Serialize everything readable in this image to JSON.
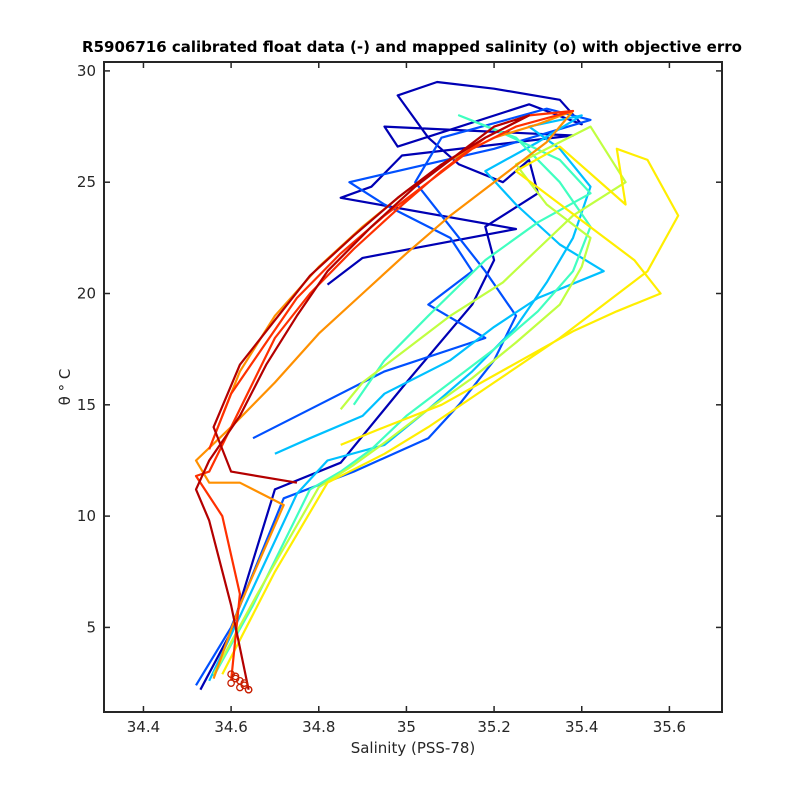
{
  "chart_data": {
    "type": "line",
    "title": "R5906716 calibrated float data (-) and mapped salinity (o) with objective erro",
    "xlabel": "Salinity (PSS-78)",
    "ylabel": "θ ° C",
    "xlim": [
      34.31,
      35.72
    ],
    "ylim": [
      1.2,
      30.4
    ],
    "x_ticks": [
      "34.4",
      "34.6",
      "34.8",
      "35",
      "35.2",
      "35.4",
      "35.6"
    ],
    "y_ticks": [
      "5",
      "10",
      "15",
      "20",
      "25",
      "30"
    ],
    "grid": false,
    "legend": "none",
    "colormap": "jet",
    "series": [
      {
        "color": "#0000b4",
        "x": [
          34.53,
          34.6,
          34.7,
          34.85,
          35.0,
          35.15,
          35.2,
          35.18,
          35.3,
          35.28,
          35.22,
          35.12,
          35.05,
          34.98,
          35.07,
          35.2,
          35.35,
          35.4,
          35.28,
          34.98,
          34.95,
          35.38,
          34.99,
          34.92,
          34.85,
          35.25,
          34.9,
          34.82
        ],
        "y": [
          2.2,
          4.8,
          11.2,
          12.4,
          16.0,
          19.5,
          21.5,
          23.0,
          24.5,
          26.0,
          25.0,
          25.8,
          27.0,
          28.9,
          29.5,
          29.2,
          28.7,
          27.6,
          28.5,
          26.6,
          27.5,
          27.1,
          26.2,
          24.8,
          24.3,
          22.9,
          21.6,
          20.4
        ]
      },
      {
        "color": "#0050ff",
        "x": [
          34.52,
          34.6,
          34.72,
          34.88,
          35.05,
          35.12,
          35.2,
          35.25,
          35.18,
          35.1,
          35.02,
          35.08,
          35.32,
          35.42,
          35.2,
          34.87,
          34.95,
          35.1,
          35.15,
          35.05,
          35.18,
          34.95,
          34.8,
          34.65
        ],
        "y": [
          2.4,
          5.0,
          10.8,
          12.0,
          13.5,
          15.0,
          17.0,
          19.0,
          21.0,
          23.0,
          25.0,
          27.0,
          28.3,
          27.8,
          26.5,
          25.0,
          24.0,
          22.5,
          21.0,
          19.5,
          18.0,
          16.5,
          15.0,
          13.5
        ]
      },
      {
        "color": "#00c0ff",
        "x": [
          34.55,
          34.62,
          34.75,
          34.82,
          34.95,
          35.05,
          35.15,
          35.25,
          35.32,
          35.38,
          35.42,
          35.35,
          35.28,
          35.4,
          35.3,
          35.18,
          35.25,
          35.35,
          35.45,
          35.3,
          35.2,
          35.1,
          34.95,
          34.9,
          34.78,
          34.7
        ],
        "y": [
          2.6,
          5.5,
          11.0,
          12.5,
          13.2,
          14.8,
          16.5,
          18.5,
          20.5,
          22.5,
          24.8,
          26.5,
          27.5,
          28.0,
          26.8,
          25.5,
          24.0,
          22.2,
          21.0,
          19.8,
          18.5,
          17.0,
          15.5,
          14.5,
          13.5,
          12.8
        ]
      },
      {
        "color": "#40ffc0",
        "x": [
          34.56,
          34.65,
          34.78,
          34.85,
          34.92,
          35.0,
          35.1,
          35.2,
          35.3,
          35.38,
          35.42,
          35.35,
          35.25,
          35.12,
          35.22,
          35.35,
          35.42,
          35.3,
          35.18,
          35.05,
          34.95,
          34.88
        ],
        "y": [
          2.8,
          6.0,
          11.2,
          12.0,
          13.0,
          14.5,
          16.0,
          17.5,
          19.2,
          21.0,
          23.0,
          25.0,
          27.0,
          28.0,
          27.2,
          26.0,
          24.5,
          23.2,
          21.5,
          19.0,
          17.0,
          15.0
        ]
      },
      {
        "color": "#c0ff40",
        "x": [
          34.56,
          34.66,
          34.8,
          34.88,
          34.95,
          35.05,
          35.15,
          35.25,
          35.35,
          35.4,
          35.42,
          35.32,
          35.25,
          35.42,
          35.5,
          35.38,
          35.3,
          35.22,
          35.1,
          35.0,
          34.9,
          34.85
        ],
        "y": [
          2.9,
          6.5,
          11.3,
          12.3,
          13.3,
          14.8,
          16.2,
          17.8,
          19.5,
          21.2,
          22.5,
          24.0,
          25.8,
          27.5,
          25.0,
          23.5,
          22.0,
          20.5,
          19.0,
          17.5,
          16.0,
          14.8
        ]
      },
      {
        "color": "#ffee00",
        "x": [
          34.58,
          34.7,
          34.82,
          34.95,
          35.05,
          35.2,
          35.35,
          35.55,
          35.62,
          35.55,
          35.48,
          35.5,
          35.35,
          35.25,
          35.52,
          35.58,
          35.48,
          35.38,
          35.08,
          34.95,
          34.85
        ],
        "y": [
          2.9,
          7.5,
          11.5,
          12.8,
          14.0,
          16.0,
          18.0,
          21.0,
          23.5,
          26.0,
          26.5,
          24.0,
          26.6,
          25.5,
          21.5,
          20.0,
          19.2,
          18.3,
          15.0,
          14.0,
          13.2
        ]
      },
      {
        "color": "#ff9000",
        "x": [
          34.56,
          34.62,
          34.72,
          34.62,
          34.55,
          34.52,
          34.6,
          34.7,
          34.8,
          34.9,
          35.0,
          35.1,
          35.22,
          35.32,
          35.38,
          35.3,
          35.2,
          35.1,
          35.0,
          34.9,
          34.8,
          34.7,
          34.62,
          34.58
        ],
        "y": [
          2.7,
          6.0,
          10.5,
          11.5,
          11.5,
          12.5,
          14.0,
          16.0,
          18.2,
          20.0,
          21.8,
          23.5,
          25.3,
          26.8,
          28.2,
          27.6,
          27.0,
          26.0,
          24.6,
          23.0,
          21.2,
          19.0,
          16.5,
          14.5
        ]
      },
      {
        "color": "#ff3000",
        "x": [
          34.6,
          34.62,
          34.58,
          34.52,
          34.55,
          34.6,
          34.65,
          34.7,
          34.78,
          34.88,
          34.98,
          35.08,
          35.18,
          35.28,
          35.38,
          35.25,
          35.15,
          35.05,
          34.95,
          34.85,
          34.75,
          34.68,
          34.6,
          34.55
        ],
        "y": [
          2.6,
          6.5,
          10.0,
          11.8,
          12.0,
          14.0,
          16.0,
          18.0,
          20.0,
          22.0,
          23.8,
          25.5,
          27.0,
          28.0,
          28.2,
          27.5,
          26.5,
          25.0,
          23.5,
          21.8,
          19.8,
          17.8,
          15.5,
          13.0
        ]
      },
      {
        "color": "#b40000",
        "x": [
          34.64,
          34.6,
          34.55,
          34.52,
          34.55,
          34.62,
          34.68,
          34.75,
          34.82,
          34.92,
          35.02,
          35.12,
          35.2,
          35.28,
          35.18,
          35.08,
          34.98,
          34.88,
          34.78,
          34.7,
          34.62,
          34.56,
          34.6,
          34.75
        ],
        "y": [
          2.2,
          6.0,
          9.8,
          11.2,
          12.5,
          14.5,
          16.8,
          19.0,
          21.0,
          23.0,
          24.8,
          26.3,
          27.5,
          28.0,
          27.0,
          25.8,
          24.3,
          22.6,
          20.8,
          18.8,
          16.8,
          14.0,
          12.0,
          11.5
        ]
      }
    ],
    "mapped_points": {
      "color": "#c81e00",
      "x": [
        34.6,
        34.61,
        34.62,
        34.63,
        34.64,
        34.61,
        34.6,
        34.62,
        34.63,
        34.64
      ],
      "y": [
        2.9,
        2.7,
        2.6,
        2.4,
        2.2,
        2.8,
        2.5,
        2.3,
        2.5,
        2.2
      ]
    }
  }
}
